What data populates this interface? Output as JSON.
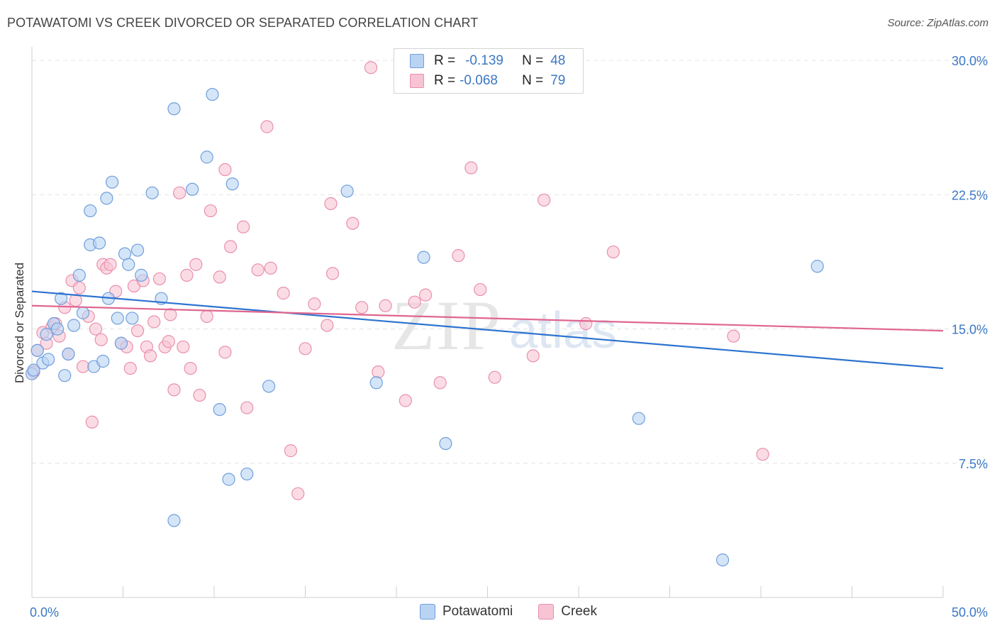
{
  "title": "POTAWATOMI VS CREEK DIVORCED OR SEPARATED CORRELATION CHART",
  "source": "Source: ZipAtlas.com",
  "watermark": {
    "zip": "ZIP",
    "atlas": "atlas"
  },
  "legend": {
    "rows": [
      {
        "r_label": "R =",
        "r_value": "-0.139",
        "n_label": "N =",
        "n_value": "48"
      },
      {
        "r_label": "R =",
        "r_value": "-0.068",
        "n_label": "N =",
        "n_value": "79"
      }
    ]
  },
  "bottom_legend": [
    "Potawatomi",
    "Creek"
  ],
  "colors": {
    "potawatomi_fill": "#b9d3f3",
    "potawatomi_stroke": "#6f9fdc",
    "potawatomi_line": "#2d73cf",
    "creek_fill": "#f8c4d4",
    "creek_stroke": "#e98fae",
    "creek_line": "#e0668f",
    "tick_text": "#3b78c4",
    "grid": "#e3e3e3"
  },
  "chart_data": {
    "type": "scatter",
    "title": "POTAWATOMI VS CREEK DIVORCED OR SEPARATED CORRELATION CHART",
    "xlabel": "",
    "ylabel": "Divorced or Separated",
    "xlim": [
      0,
      50
    ],
    "ylim": [
      0,
      30.6
    ],
    "x_tick_labels": [
      "0.0%",
      "50.0%"
    ],
    "y_ticks": [
      7.5,
      15.0,
      22.5,
      30.0
    ],
    "y_tick_labels": [
      "7.5%",
      "15.0%",
      "22.5%",
      "30.0%"
    ],
    "grid": true,
    "legend_position": "top-center",
    "series": [
      {
        "name": "Potawatomi",
        "R": -0.139,
        "N": 48,
        "trend": [
          [
            0,
            17.1
          ],
          [
            50,
            12.8
          ]
        ],
        "points": [
          [
            0.0,
            12.5
          ],
          [
            0.3,
            13.8
          ],
          [
            0.6,
            13.1
          ],
          [
            0.8,
            14.7
          ],
          [
            0.9,
            13.3
          ],
          [
            1.2,
            15.3
          ],
          [
            1.6,
            16.7
          ],
          [
            1.8,
            12.4
          ],
          [
            2.0,
            13.6
          ],
          [
            2.3,
            15.2
          ],
          [
            2.6,
            18.0
          ],
          [
            2.8,
            15.9
          ],
          [
            3.2,
            21.6
          ],
          [
            3.2,
            19.7
          ],
          [
            3.4,
            12.9
          ],
          [
            3.7,
            19.8
          ],
          [
            3.9,
            13.2
          ],
          [
            4.1,
            22.3
          ],
          [
            4.2,
            16.7
          ],
          [
            4.4,
            23.2
          ],
          [
            4.7,
            15.6
          ],
          [
            4.9,
            14.2
          ],
          [
            5.1,
            19.2
          ],
          [
            5.3,
            18.6
          ],
          [
            5.5,
            15.6
          ],
          [
            5.8,
            19.4
          ],
          [
            6.0,
            18.0
          ],
          [
            6.6,
            22.6
          ],
          [
            7.1,
            16.7
          ],
          [
            7.8,
            27.3
          ],
          [
            7.8,
            4.3
          ],
          [
            8.8,
            22.8
          ],
          [
            9.6,
            24.6
          ],
          [
            9.9,
            28.1
          ],
          [
            10.3,
            10.5
          ],
          [
            10.8,
            6.6
          ],
          [
            11.0,
            23.1
          ],
          [
            11.8,
            6.9
          ],
          [
            13.0,
            11.8
          ],
          [
            17.3,
            22.7
          ],
          [
            18.9,
            12.0
          ],
          [
            21.5,
            19.0
          ],
          [
            22.7,
            8.6
          ],
          [
            33.3,
            10.0
          ],
          [
            37.9,
            2.1
          ],
          [
            43.1,
            18.5
          ],
          [
            0.1,
            12.7
          ],
          [
            1.4,
            15.0
          ]
        ]
      },
      {
        "name": "Creek",
        "R": -0.068,
        "N": 79,
        "trend": [
          [
            0,
            16.3
          ],
          [
            50,
            14.9
          ]
        ],
        "points": [
          [
            0.1,
            12.6
          ],
          [
            0.3,
            13.8
          ],
          [
            0.6,
            14.8
          ],
          [
            0.8,
            14.2
          ],
          [
            1.1,
            15.1
          ],
          [
            1.3,
            15.3
          ],
          [
            1.5,
            14.6
          ],
          [
            1.8,
            16.2
          ],
          [
            2.0,
            13.6
          ],
          [
            2.2,
            17.7
          ],
          [
            2.4,
            16.6
          ],
          [
            2.6,
            17.3
          ],
          [
            2.8,
            12.9
          ],
          [
            3.1,
            15.7
          ],
          [
            3.3,
            9.8
          ],
          [
            3.5,
            15.0
          ],
          [
            3.8,
            14.4
          ],
          [
            3.9,
            18.6
          ],
          [
            4.1,
            18.4
          ],
          [
            4.3,
            18.6
          ],
          [
            4.6,
            17.1
          ],
          [
            4.9,
            14.2
          ],
          [
            5.2,
            14.0
          ],
          [
            5.4,
            12.8
          ],
          [
            5.6,
            17.4
          ],
          [
            5.8,
            14.9
          ],
          [
            6.1,
            17.7
          ],
          [
            6.3,
            14.0
          ],
          [
            6.5,
            13.5
          ],
          [
            6.7,
            15.4
          ],
          [
            7.0,
            17.8
          ],
          [
            7.3,
            14.0
          ],
          [
            7.5,
            14.3
          ],
          [
            7.6,
            15.8
          ],
          [
            7.8,
            11.6
          ],
          [
            8.1,
            22.6
          ],
          [
            8.3,
            14.0
          ],
          [
            8.5,
            18.0
          ],
          [
            8.7,
            12.8
          ],
          [
            9.0,
            18.6
          ],
          [
            9.2,
            11.3
          ],
          [
            9.6,
            15.7
          ],
          [
            9.8,
            21.6
          ],
          [
            10.3,
            17.9
          ],
          [
            10.6,
            13.7
          ],
          [
            10.6,
            23.9
          ],
          [
            10.9,
            19.6
          ],
          [
            11.6,
            20.7
          ],
          [
            11.8,
            10.6
          ],
          [
            12.4,
            18.3
          ],
          [
            12.9,
            26.3
          ],
          [
            13.1,
            18.4
          ],
          [
            13.8,
            17.0
          ],
          [
            14.2,
            8.2
          ],
          [
            14.6,
            5.8
          ],
          [
            15.0,
            13.9
          ],
          [
            15.5,
            16.4
          ],
          [
            16.2,
            15.2
          ],
          [
            16.4,
            22.0
          ],
          [
            16.5,
            18.1
          ],
          [
            17.6,
            20.9
          ],
          [
            18.1,
            16.2
          ],
          [
            18.6,
            29.6
          ],
          [
            19.0,
            12.6
          ],
          [
            19.4,
            16.3
          ],
          [
            20.5,
            11.0
          ],
          [
            21.0,
            16.5
          ],
          [
            21.6,
            16.9
          ],
          [
            22.4,
            12.0
          ],
          [
            23.4,
            19.1
          ],
          [
            24.1,
            24.0
          ],
          [
            24.6,
            17.2
          ],
          [
            25.4,
            12.3
          ],
          [
            27.5,
            13.5
          ],
          [
            28.1,
            22.2
          ],
          [
            30.4,
            15.3
          ],
          [
            31.9,
            19.3
          ],
          [
            38.5,
            14.6
          ],
          [
            40.1,
            8.0
          ]
        ]
      }
    ]
  }
}
